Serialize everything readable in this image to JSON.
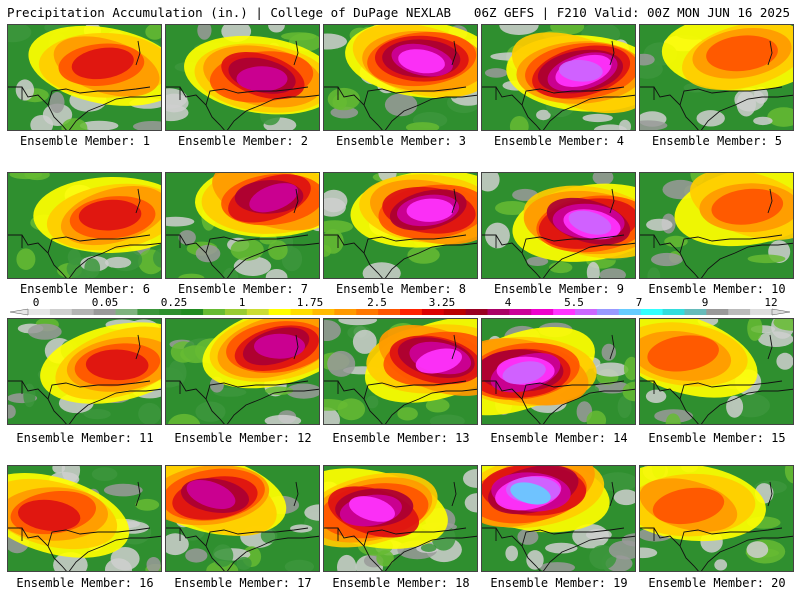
{
  "header": {
    "left": "Precipitation Accumulation (in.) | College of DuPage NEXLAB",
    "right": "06Z GEFS | F210 Valid: 00Z MON JUN 16 2025"
  },
  "caption_prefix": "Ensemble Member: ",
  "members": [
    {
      "label": "Ensemble Member: 1"
    },
    {
      "label": "Ensemble Member: 2"
    },
    {
      "label": "Ensemble Member: 3"
    },
    {
      "label": "Ensemble Member: 4"
    },
    {
      "label": "Ensemble Member: 5"
    },
    {
      "label": "Ensemble Member: 6"
    },
    {
      "label": "Ensemble Member: 7"
    },
    {
      "label": "Ensemble Member: 8"
    },
    {
      "label": "Ensemble Member: 9"
    },
    {
      "label": "Ensemble Member: 10"
    },
    {
      "label": "Ensemble Member: 11"
    },
    {
      "label": "Ensemble Member: 12"
    },
    {
      "label": "Ensemble Member: 13"
    },
    {
      "label": "Ensemble Member: 14"
    },
    {
      "label": "Ensemble Member: 15"
    },
    {
      "label": "Ensemble Member: 16"
    },
    {
      "label": "Ensemble Member: 17"
    },
    {
      "label": "Ensemble Member: 18"
    },
    {
      "label": "Ensemble Member: 19"
    },
    {
      "label": "Ensemble Member: 20"
    }
  ],
  "colorbar": {
    "tick_labels": [
      "0",
      "0.05",
      "0.25",
      "1",
      "1.75",
      "2.5",
      "3.25",
      "4",
      "5.5",
      "7",
      "9",
      "12"
    ],
    "colors": [
      "#e6e6e6",
      "#cfcfcf",
      "#b4b4b4",
      "#9a9a9a",
      "#7fb37f",
      "#3c963c",
      "#2f8f2f",
      "#228b22",
      "#66bb33",
      "#99cc33",
      "#ccdd33",
      "#ffff00",
      "#ffdd00",
      "#ffbb00",
      "#ff9900",
      "#ff7700",
      "#ff5500",
      "#ff2200",
      "#dd0000",
      "#bb0000",
      "#990022",
      "#aa0066",
      "#cc0099",
      "#ee00cc",
      "#ff33ff",
      "#cc66ff",
      "#9999ff",
      "#66ccff",
      "#33ffff",
      "#33dddd",
      "#66bbbb",
      "#999999",
      "#bbbbbb",
      "#dddddd"
    ]
  }
}
